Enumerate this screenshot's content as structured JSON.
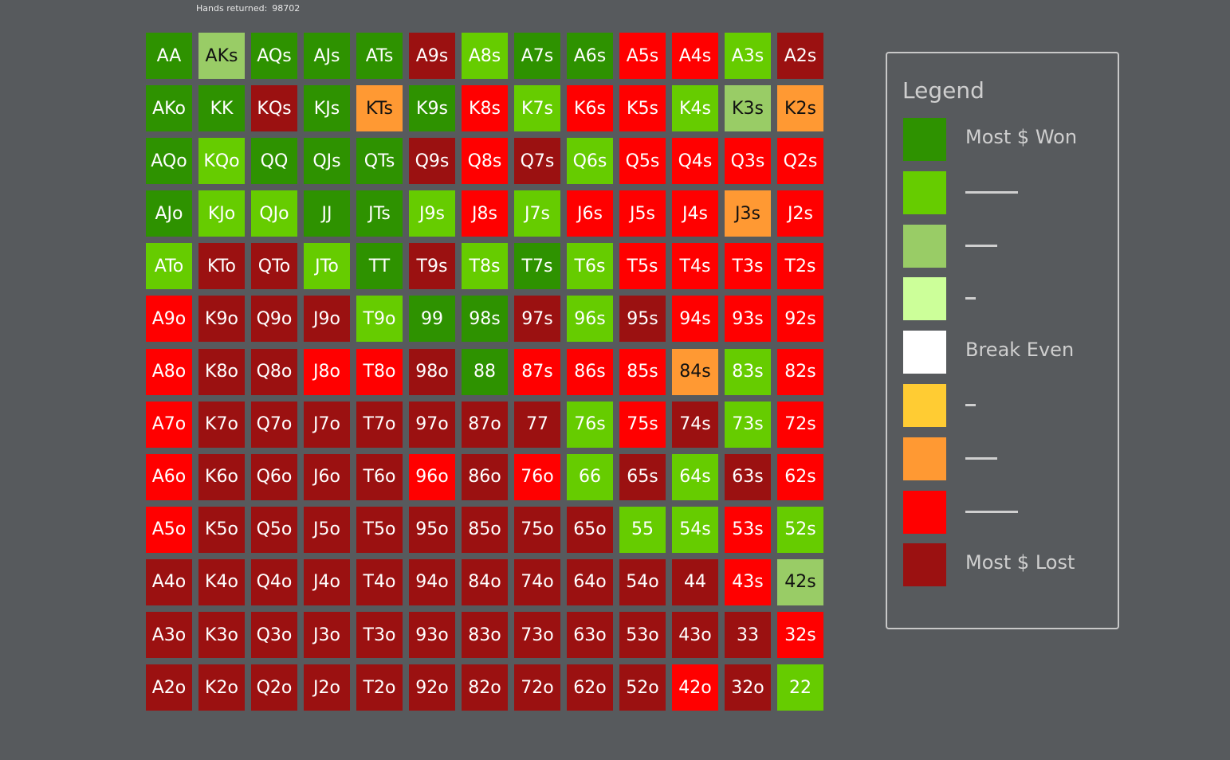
{
  "header": {
    "hands_returned_label": "Hands returned:",
    "hands_returned_value": "98702"
  },
  "colors": {
    "dg": "#2e9200",
    "lg": "#66cc00",
    "pg": "#99cc66",
    "vp": "#ccff99",
    "wh": "#ffffff",
    "ye": "#ffcc33",
    "or": "#ff9933",
    "rd": "#ff0000",
    "dr": "#9b1111"
  },
  "grid": {
    "rows": [
      [
        [
          "AA",
          "dg"
        ],
        [
          "AKs",
          "pg"
        ],
        [
          "AQs",
          "dg"
        ],
        [
          "AJs",
          "dg"
        ],
        [
          "ATs",
          "dg"
        ],
        [
          "A9s",
          "dr"
        ],
        [
          "A8s",
          "lg"
        ],
        [
          "A7s",
          "dg"
        ],
        [
          "A6s",
          "dg"
        ],
        [
          "A5s",
          "rd"
        ],
        [
          "A4s",
          "rd"
        ],
        [
          "A3s",
          "lg"
        ],
        [
          "A2s",
          "dr"
        ]
      ],
      [
        [
          "AKo",
          "dg"
        ],
        [
          "KK",
          "dg"
        ],
        [
          "KQs",
          "dr"
        ],
        [
          "KJs",
          "dg"
        ],
        [
          "KTs",
          "or"
        ],
        [
          "K9s",
          "dg"
        ],
        [
          "K8s",
          "rd"
        ],
        [
          "K7s",
          "lg"
        ],
        [
          "K6s",
          "rd"
        ],
        [
          "K5s",
          "rd"
        ],
        [
          "K4s",
          "lg"
        ],
        [
          "K3s",
          "pg"
        ],
        [
          "K2s",
          "or"
        ]
      ],
      [
        [
          "AQo",
          "dg"
        ],
        [
          "KQo",
          "lg"
        ],
        [
          "QQ",
          "dg"
        ],
        [
          "QJs",
          "dg"
        ],
        [
          "QTs",
          "dg"
        ],
        [
          "Q9s",
          "dr"
        ],
        [
          "Q8s",
          "rd"
        ],
        [
          "Q7s",
          "dr"
        ],
        [
          "Q6s",
          "lg"
        ],
        [
          "Q5s",
          "rd"
        ],
        [
          "Q4s",
          "rd"
        ],
        [
          "Q3s",
          "rd"
        ],
        [
          "Q2s",
          "rd"
        ]
      ],
      [
        [
          "AJo",
          "dg"
        ],
        [
          "KJo",
          "lg"
        ],
        [
          "QJo",
          "lg"
        ],
        [
          "JJ",
          "dg"
        ],
        [
          "JTs",
          "dg"
        ],
        [
          "J9s",
          "lg"
        ],
        [
          "J8s",
          "rd"
        ],
        [
          "J7s",
          "lg"
        ],
        [
          "J6s",
          "rd"
        ],
        [
          "J5s",
          "rd"
        ],
        [
          "J4s",
          "rd"
        ],
        [
          "J3s",
          "or"
        ],
        [
          "J2s",
          "rd"
        ]
      ],
      [
        [
          "ATo",
          "lg"
        ],
        [
          "KTo",
          "dr"
        ],
        [
          "QTo",
          "dr"
        ],
        [
          "JTo",
          "lg"
        ],
        [
          "TT",
          "dg"
        ],
        [
          "T9s",
          "dr"
        ],
        [
          "T8s",
          "lg"
        ],
        [
          "T7s",
          "dg"
        ],
        [
          "T6s",
          "lg"
        ],
        [
          "T5s",
          "rd"
        ],
        [
          "T4s",
          "rd"
        ],
        [
          "T3s",
          "rd"
        ],
        [
          "T2s",
          "rd"
        ]
      ],
      [
        [
          "A9o",
          "rd"
        ],
        [
          "K9o",
          "dr"
        ],
        [
          "Q9o",
          "dr"
        ],
        [
          "J9o",
          "dr"
        ],
        [
          "T9o",
          "lg"
        ],
        [
          "99",
          "dg"
        ],
        [
          "98s",
          "dg"
        ],
        [
          "97s",
          "dr"
        ],
        [
          "96s",
          "lg"
        ],
        [
          "95s",
          "dr"
        ],
        [
          "94s",
          "rd"
        ],
        [
          "93s",
          "rd"
        ],
        [
          "92s",
          "rd"
        ]
      ],
      [
        [
          "A8o",
          "rd"
        ],
        [
          "K8o",
          "dr"
        ],
        [
          "Q8o",
          "dr"
        ],
        [
          "J8o",
          "rd"
        ],
        [
          "T8o",
          "rd"
        ],
        [
          "98o",
          "dr"
        ],
        [
          "88",
          "dg"
        ],
        [
          "87s",
          "rd"
        ],
        [
          "86s",
          "rd"
        ],
        [
          "85s",
          "rd"
        ],
        [
          "84s",
          "or"
        ],
        [
          "83s",
          "lg"
        ],
        [
          "82s",
          "rd"
        ]
      ],
      [
        [
          "A7o",
          "rd"
        ],
        [
          "K7o",
          "dr"
        ],
        [
          "Q7o",
          "dr"
        ],
        [
          "J7o",
          "dr"
        ],
        [
          "T7o",
          "dr"
        ],
        [
          "97o",
          "dr"
        ],
        [
          "87o",
          "dr"
        ],
        [
          "77",
          "dr"
        ],
        [
          "76s",
          "lg"
        ],
        [
          "75s",
          "rd"
        ],
        [
          "74s",
          "dr"
        ],
        [
          "73s",
          "lg"
        ],
        [
          "72s",
          "rd"
        ]
      ],
      [
        [
          "A6o",
          "rd"
        ],
        [
          "K6o",
          "dr"
        ],
        [
          "Q6o",
          "dr"
        ],
        [
          "J6o",
          "dr"
        ],
        [
          "T6o",
          "dr"
        ],
        [
          "96o",
          "rd"
        ],
        [
          "86o",
          "dr"
        ],
        [
          "76o",
          "rd"
        ],
        [
          "66",
          "lg"
        ],
        [
          "65s",
          "dr"
        ],
        [
          "64s",
          "lg"
        ],
        [
          "63s",
          "dr"
        ],
        [
          "62s",
          "rd"
        ]
      ],
      [
        [
          "A5o",
          "rd"
        ],
        [
          "K5o",
          "dr"
        ],
        [
          "Q5o",
          "dr"
        ],
        [
          "J5o",
          "dr"
        ],
        [
          "T5o",
          "dr"
        ],
        [
          "95o",
          "dr"
        ],
        [
          "85o",
          "dr"
        ],
        [
          "75o",
          "dr"
        ],
        [
          "65o",
          "dr"
        ],
        [
          "55",
          "lg"
        ],
        [
          "54s",
          "lg"
        ],
        [
          "53s",
          "rd"
        ],
        [
          "52s",
          "lg"
        ]
      ],
      [
        [
          "A4o",
          "dr"
        ],
        [
          "K4o",
          "dr"
        ],
        [
          "Q4o",
          "dr"
        ],
        [
          "J4o",
          "dr"
        ],
        [
          "T4o",
          "dr"
        ],
        [
          "94o",
          "dr"
        ],
        [
          "84o",
          "dr"
        ],
        [
          "74o",
          "dr"
        ],
        [
          "64o",
          "dr"
        ],
        [
          "54o",
          "dr"
        ],
        [
          "44",
          "dr"
        ],
        [
          "43s",
          "rd"
        ],
        [
          "42s",
          "pg"
        ]
      ],
      [
        [
          "A3o",
          "dr"
        ],
        [
          "K3o",
          "dr"
        ],
        [
          "Q3o",
          "dr"
        ],
        [
          "J3o",
          "dr"
        ],
        [
          "T3o",
          "dr"
        ],
        [
          "93o",
          "dr"
        ],
        [
          "83o",
          "dr"
        ],
        [
          "73o",
          "dr"
        ],
        [
          "63o",
          "dr"
        ],
        [
          "53o",
          "dr"
        ],
        [
          "43o",
          "dr"
        ],
        [
          "33",
          "dr"
        ],
        [
          "32s",
          "rd"
        ]
      ],
      [
        [
          "A2o",
          "dr"
        ],
        [
          "K2o",
          "dr"
        ],
        [
          "Q2o",
          "dr"
        ],
        [
          "J2o",
          "dr"
        ],
        [
          "T2o",
          "dr"
        ],
        [
          "92o",
          "dr"
        ],
        [
          "82o",
          "dr"
        ],
        [
          "72o",
          "dr"
        ],
        [
          "62o",
          "dr"
        ],
        [
          "52o",
          "dr"
        ],
        [
          "42o",
          "rd"
        ],
        [
          "32o",
          "dr"
        ],
        [
          "22",
          "lg"
        ]
      ]
    ]
  },
  "legend": {
    "title": "Legend",
    "items": [
      {
        "color": "dg",
        "label": "Most $ Won",
        "line": ""
      },
      {
        "color": "lg",
        "label": "",
        "line": "long"
      },
      {
        "color": "pg",
        "label": "",
        "line": "medium"
      },
      {
        "color": "vp",
        "label": "",
        "line": "short"
      },
      {
        "color": "wh",
        "label": "Break Even",
        "line": ""
      },
      {
        "color": "ye",
        "label": "",
        "line": "short"
      },
      {
        "color": "or",
        "label": "",
        "line": "medium"
      },
      {
        "color": "rd",
        "label": "",
        "line": "long"
      },
      {
        "color": "dr",
        "label": "Most $ Lost",
        "line": ""
      }
    ]
  }
}
